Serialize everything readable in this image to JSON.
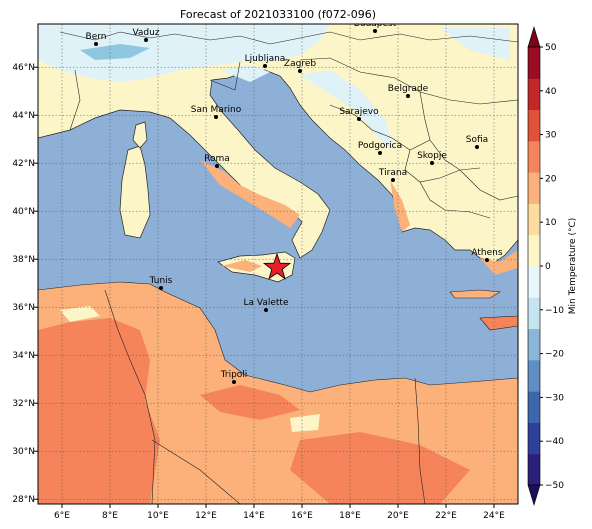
{
  "title": "Forecast of 2021033100 (f072-096)",
  "colorbar": {
    "label": "Min Temperature (°C)",
    "ticks": [
      "50",
      "40",
      "30",
      "20",
      "10",
      "0",
      "−10",
      "−20",
      "−30",
      "−40",
      "−50"
    ],
    "colors": [
      "#2a1f7a",
      "#2f3f9c",
      "#3d66ad",
      "#5f8fc2",
      "#8ab6d8",
      "#c5e4ef",
      "#eaf7fa",
      "#fbf5c8",
      "#fddca0",
      "#fcb17a",
      "#f6845a",
      "#e05239",
      "#c2272a",
      "#9a0c21"
    ]
  },
  "axes": {
    "x_ticks": [
      "6°E",
      "8°E",
      "10°E",
      "12°E",
      "14°E",
      "16°E",
      "18°E",
      "20°E",
      "22°E",
      "24°E"
    ],
    "y_ticks": [
      "46°N",
      "44°N",
      "42°N",
      "40°N",
      "38°N",
      "36°N",
      "34°N",
      "32°N",
      "30°N",
      "28°N"
    ],
    "lon_range": [
      5,
      25
    ],
    "lat_range": [
      27.8,
      47.8
    ]
  },
  "colors": {
    "sea": "#8fb0d6",
    "land_mild": "#fbf5c8",
    "land_cold": "#dff2f8",
    "land_cool": "#8fc6e0",
    "land_warm": "#fcb17a",
    "land_hot": "#f6845a",
    "marker": "#e8202a"
  },
  "cities": [
    {
      "name": "Bern"
    },
    {
      "name": "Vaduz"
    },
    {
      "name": "Budapest"
    },
    {
      "name": "Ljubljana"
    },
    {
      "name": "Zagreb"
    },
    {
      "name": "Belgrade"
    },
    {
      "name": "San Marino"
    },
    {
      "name": "Sarajevo"
    },
    {
      "name": "Sofia"
    },
    {
      "name": "Roma"
    },
    {
      "name": "Podgorica"
    },
    {
      "name": "Skopje"
    },
    {
      "name": "Tirana"
    },
    {
      "name": "Athens"
    },
    {
      "name": "Tunis"
    },
    {
      "name": "La Valette"
    },
    {
      "name": "Tripoli"
    }
  ]
}
